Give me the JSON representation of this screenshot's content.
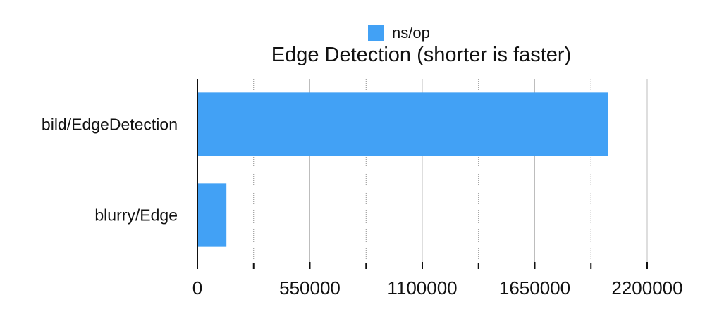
{
  "title": "Edge Detection (shorter is faster)",
  "legend": {
    "label": "ns/op",
    "color": "#42a1f5"
  },
  "chart_data": {
    "type": "bar",
    "orientation": "horizontal",
    "title": "Edge Detection (shorter is faster)",
    "categories": [
      "bild/EdgeDetection",
      "blurry/Edge"
    ],
    "series": [
      {
        "name": "ns/op",
        "values": [
          2010000,
          142000
        ],
        "color": "#42a1f5"
      }
    ],
    "xlim": [
      0,
      2200000
    ],
    "xticks": [
      "0",
      "550000",
      "1100000",
      "1650000",
      "2200000"
    ],
    "grid": "vertical",
    "legend_position": "top"
  }
}
